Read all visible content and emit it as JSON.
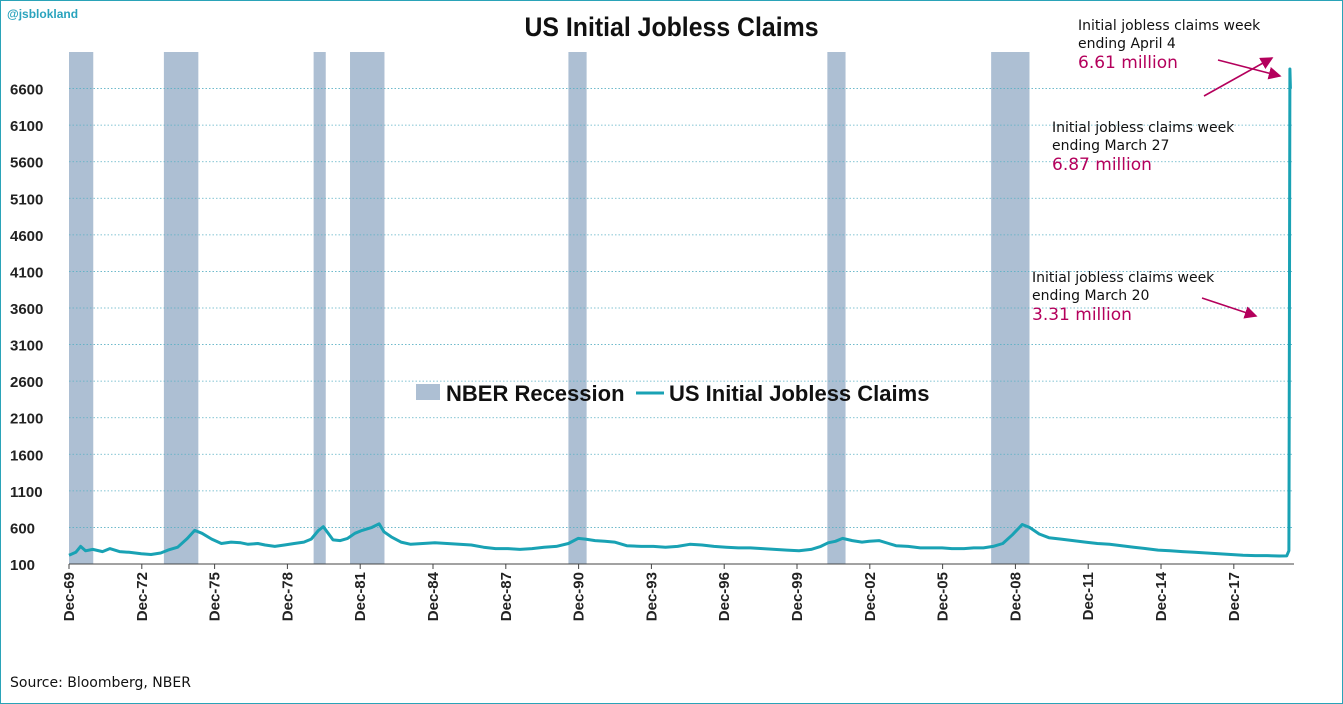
{
  "header": {
    "handle": "@jsblokland",
    "title": "US Initial Jobless Claims"
  },
  "footer": {
    "source": "Source: Bloomberg, NBER"
  },
  "colors": {
    "line": "#19a2b4",
    "recession": "#adbfd3",
    "grid": "#5ab0c4",
    "annotation": "#b4005c"
  },
  "chart_data": {
    "type": "line",
    "title": "US Initial Jobless Claims",
    "ylim": [
      100,
      7100
    ],
    "y_ticks": [
      100,
      600,
      1100,
      1600,
      2100,
      2600,
      3100,
      3600,
      4100,
      4600,
      5100,
      5600,
      6100,
      6600
    ],
    "x_range": [
      1969.92,
      2020.4
    ],
    "x_ticks": [
      {
        "label": "Dec-69",
        "x": 1969.92
      },
      {
        "label": "Dec-72",
        "x": 1972.92
      },
      {
        "label": "Dec-75",
        "x": 1975.92
      },
      {
        "label": "Dec-78",
        "x": 1978.92
      },
      {
        "label": "Dec-81",
        "x": 1981.92
      },
      {
        "label": "Dec-84",
        "x": 1984.92
      },
      {
        "label": "Dec-87",
        "x": 1987.92
      },
      {
        "label": "Dec-90",
        "x": 1990.92
      },
      {
        "label": "Dec-93",
        "x": 1993.92
      },
      {
        "label": "Dec-96",
        "x": 1996.92
      },
      {
        "label": "Dec-99",
        "x": 1999.92
      },
      {
        "label": "Dec-02",
        "x": 2002.92
      },
      {
        "label": "Dec-05",
        "x": 2005.92
      },
      {
        "label": "Dec-08",
        "x": 2008.92
      },
      {
        "label": "Dec-11",
        "x": 2011.92
      },
      {
        "label": "Dec-14",
        "x": 2014.92
      },
      {
        "label": "Dec-17",
        "x": 2017.92
      }
    ],
    "grid": true,
    "legend_position": "center",
    "series": [
      {
        "name": "NBER Recession",
        "kind": "band",
        "ranges": [
          [
            1969.92,
            1970.92
          ],
          [
            1973.83,
            1975.25
          ],
          [
            1980.0,
            1980.5
          ],
          [
            1981.5,
            1982.92
          ],
          [
            1990.5,
            1991.25
          ],
          [
            2001.17,
            2001.92
          ],
          [
            2007.92,
            2009.5
          ]
        ]
      },
      {
        "name": "US Initial Jobless Claims",
        "kind": "line",
        "points": [
          [
            1969.92,
            220
          ],
          [
            1970.2,
            260
          ],
          [
            1970.4,
            340
          ],
          [
            1970.6,
            280
          ],
          [
            1970.9,
            300
          ],
          [
            1971.3,
            270
          ],
          [
            1971.6,
            310
          ],
          [
            1972.0,
            270
          ],
          [
            1972.4,
            260
          ],
          [
            1972.9,
            240
          ],
          [
            1973.3,
            230
          ],
          [
            1973.7,
            250
          ],
          [
            1974.0,
            290
          ],
          [
            1974.4,
            330
          ],
          [
            1974.8,
            450
          ],
          [
            1975.1,
            560
          ],
          [
            1975.4,
            520
          ],
          [
            1975.8,
            440
          ],
          [
            1976.2,
            380
          ],
          [
            1976.6,
            400
          ],
          [
            1977.0,
            390
          ],
          [
            1977.3,
            370
          ],
          [
            1977.7,
            380
          ],
          [
            1978.0,
            360
          ],
          [
            1978.4,
            340
          ],
          [
            1978.8,
            360
          ],
          [
            1979.2,
            380
          ],
          [
            1979.6,
            400
          ],
          [
            1979.9,
            440
          ],
          [
            1980.2,
            560
          ],
          [
            1980.4,
            610
          ],
          [
            1980.6,
            520
          ],
          [
            1980.8,
            430
          ],
          [
            1981.1,
            420
          ],
          [
            1981.4,
            450
          ],
          [
            1981.7,
            520
          ],
          [
            1982.0,
            560
          ],
          [
            1982.4,
            600
          ],
          [
            1982.7,
            650
          ],
          [
            1982.9,
            540
          ],
          [
            1983.2,
            470
          ],
          [
            1983.6,
            400
          ],
          [
            1984.0,
            370
          ],
          [
            1984.5,
            380
          ],
          [
            1985.0,
            390
          ],
          [
            1985.5,
            380
          ],
          [
            1986.0,
            370
          ],
          [
            1986.5,
            360
          ],
          [
            1987.0,
            330
          ],
          [
            1987.5,
            310
          ],
          [
            1988.0,
            310
          ],
          [
            1988.5,
            300
          ],
          [
            1989.0,
            310
          ],
          [
            1989.5,
            330
          ],
          [
            1990.0,
            340
          ],
          [
            1990.5,
            380
          ],
          [
            1990.9,
            450
          ],
          [
            1991.2,
            440
          ],
          [
            1991.6,
            420
          ],
          [
            1992.0,
            410
          ],
          [
            1992.4,
            400
          ],
          [
            1992.9,
            350
          ],
          [
            1993.5,
            340
          ],
          [
            1994.0,
            340
          ],
          [
            1994.5,
            330
          ],
          [
            1995.0,
            340
          ],
          [
            1995.5,
            370
          ],
          [
            1996.0,
            360
          ],
          [
            1996.5,
            340
          ],
          [
            1997.0,
            330
          ],
          [
            1997.5,
            320
          ],
          [
            1998.0,
            320
          ],
          [
            1998.5,
            310
          ],
          [
            1999.0,
            300
          ],
          [
            1999.5,
            290
          ],
          [
            2000.0,
            280
          ],
          [
            2000.5,
            300
          ],
          [
            2000.9,
            340
          ],
          [
            2001.2,
            390
          ],
          [
            2001.5,
            410
          ],
          [
            2001.8,
            450
          ],
          [
            2002.2,
            420
          ],
          [
            2002.6,
            400
          ],
          [
            2002.9,
            410
          ],
          [
            2003.3,
            420
          ],
          [
            2003.7,
            380
          ],
          [
            2004.0,
            350
          ],
          [
            2004.5,
            340
          ],
          [
            2005.0,
            320
          ],
          [
            2005.5,
            320
          ],
          [
            2005.9,
            320
          ],
          [
            2006.3,
            310
          ],
          [
            2006.8,
            310
          ],
          [
            2007.2,
            320
          ],
          [
            2007.6,
            320
          ],
          [
            2008.0,
            340
          ],
          [
            2008.4,
            380
          ],
          [
            2008.8,
            500
          ],
          [
            2009.2,
            640
          ],
          [
            2009.5,
            600
          ],
          [
            2009.9,
            510
          ],
          [
            2010.3,
            460
          ],
          [
            2010.8,
            440
          ],
          [
            2011.3,
            420
          ],
          [
            2011.8,
            400
          ],
          [
            2012.3,
            380
          ],
          [
            2012.8,
            370
          ],
          [
            2013.3,
            350
          ],
          [
            2013.8,
            330
          ],
          [
            2014.3,
            310
          ],
          [
            2014.8,
            290
          ],
          [
            2015.3,
            280
          ],
          [
            2015.8,
            270
          ],
          [
            2016.3,
            260
          ],
          [
            2016.8,
            250
          ],
          [
            2017.3,
            240
          ],
          [
            2017.8,
            230
          ],
          [
            2018.3,
            220
          ],
          [
            2018.8,
            215
          ],
          [
            2019.3,
            215
          ],
          [
            2019.8,
            210
          ],
          [
            2020.1,
            211
          ],
          [
            2020.19,
            282
          ],
          [
            2020.21,
            3307
          ],
          [
            2020.23,
            6867
          ],
          [
            2020.25,
            6606
          ]
        ]
      }
    ],
    "annotations": [
      {
        "text_line1": "Initial  jobless claims week",
        "text_line2": "ending April 4",
        "value": "6.61 million"
      },
      {
        "text_line1": "Initial  jobless claims week",
        "text_line2": "ending March 27",
        "value": "6.87 million"
      },
      {
        "text_line1": "Initial  jobless claims week",
        "text_line2": "ending March 20",
        "value": "3.31 million"
      }
    ]
  }
}
